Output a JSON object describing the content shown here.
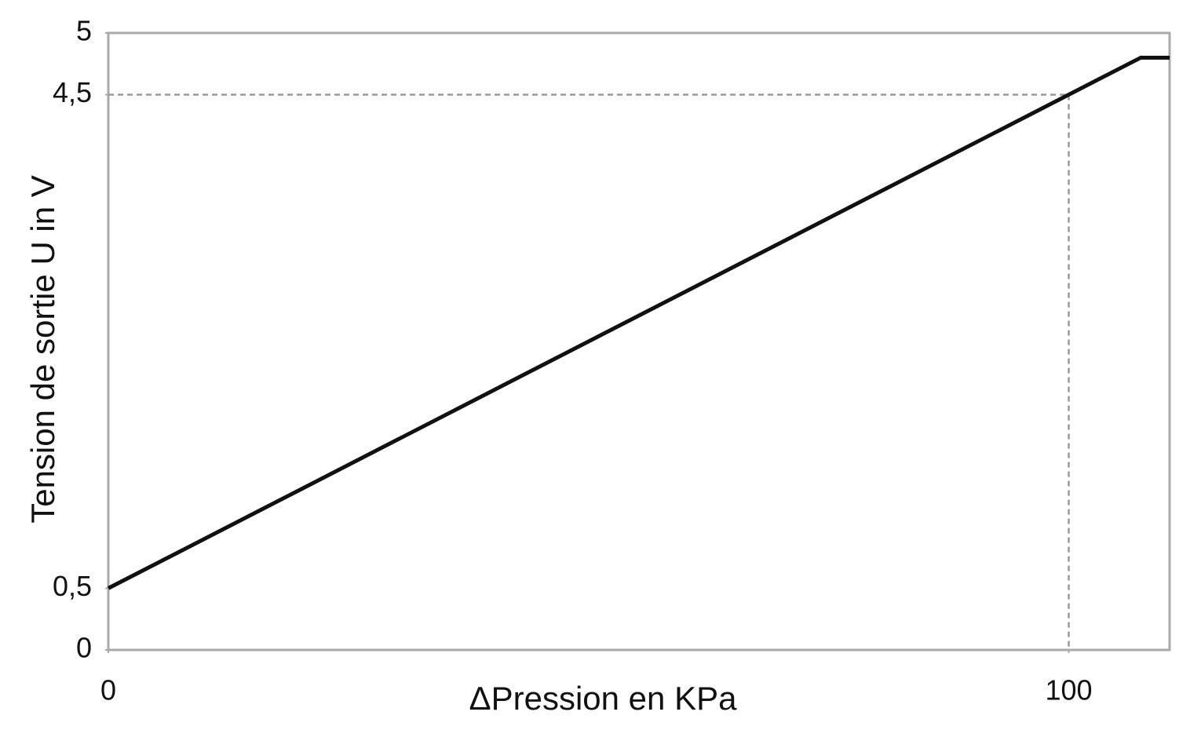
{
  "chart_data": {
    "type": "line",
    "x_label": "ΔPression en KPa",
    "y_label": "Tension de sortie  U in V",
    "x": [
      0,
      107.5,
      110.5
    ],
    "series": [
      {
        "color": "#111111",
        "values": [
          0.5,
          4.8,
          4.8
        ]
      }
    ],
    "xlim": [
      0,
      110.5
    ],
    "ylim": [
      0,
      5
    ],
    "xticks": [
      0,
      100
    ],
    "yticks": [
      0,
      {
        "value": 0.5,
        "label": "0,5"
      },
      {
        "value": 4.5,
        "label": "4,5"
      },
      5
    ],
    "guides": {
      "x": 100,
      "y": 4.5
    }
  }
}
